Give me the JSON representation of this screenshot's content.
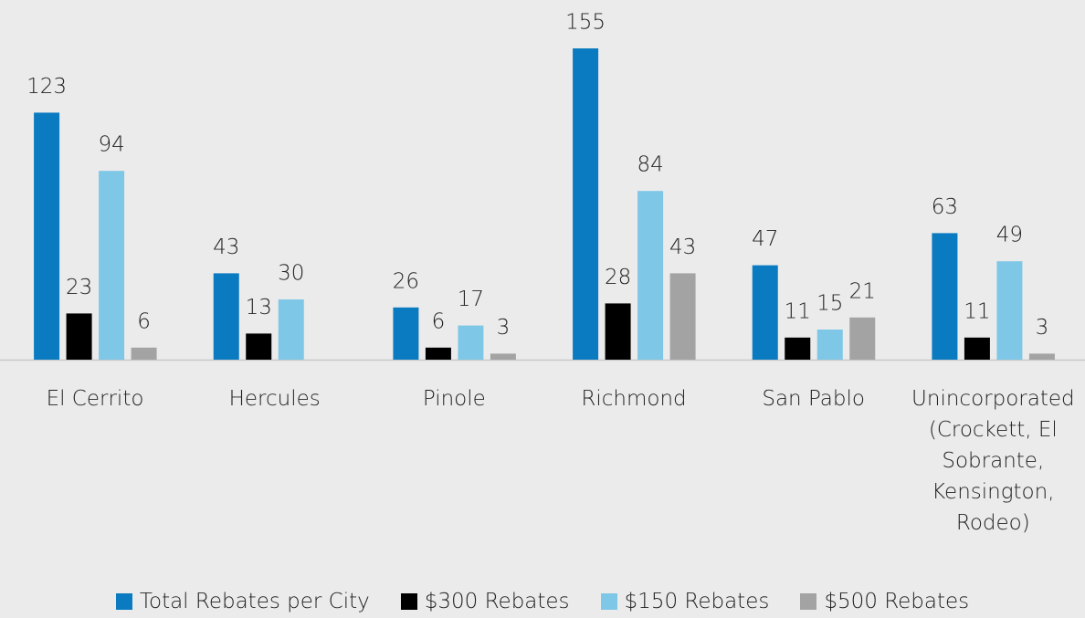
{
  "chart_data": {
    "type": "bar",
    "categories": [
      "El Cerrito",
      "Hercules",
      "Pinole",
      "Richmond",
      "San Pablo",
      "Unincorporated (Crockett, El Sobrante, Kensington, Rodeo)"
    ],
    "series": [
      {
        "name": "Total Rebates per City",
        "color": "#0b7bc1",
        "values": [
          123,
          43,
          26,
          155,
          47,
          63
        ]
      },
      {
        "name": "$300 Rebates",
        "color": "#000000",
        "values": [
          23,
          13,
          6,
          28,
          11,
          11
        ]
      },
      {
        "name": "$150 Rebates",
        "color": "#7fc7e6",
        "values": [
          94,
          30,
          17,
          84,
          15,
          49
        ]
      },
      {
        "name": "$500 Rebates",
        "color": "#a3a3a3",
        "values": [
          6,
          null,
          3,
          43,
          21,
          3
        ]
      }
    ],
    "legend": "bottom"
  }
}
